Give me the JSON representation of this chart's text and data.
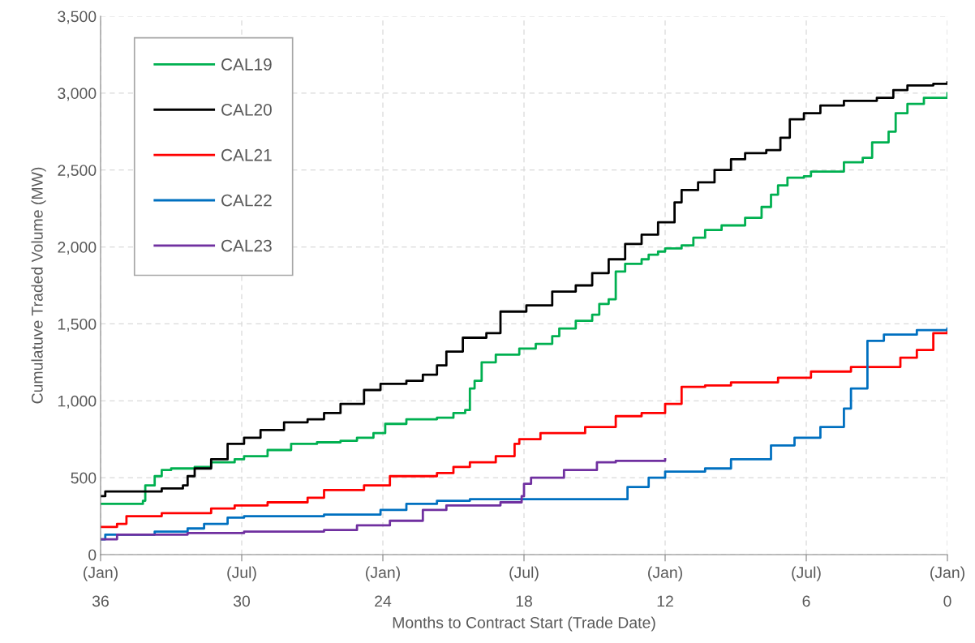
{
  "chart_data": {
    "type": "step",
    "xlabel": "Months to Contract Start (Trade Date)",
    "ylabel": "Cumulatuve Traded Volume (MW)",
    "xlim": [
      36,
      0
    ],
    "xticks": [
      36,
      30,
      24,
      18,
      12,
      6,
      0
    ],
    "annotations": [
      "(Jan)",
      "(Jul)",
      "(Jan)",
      "(Jul)",
      "(Jan)",
      "(Jul)",
      "(Jan)"
    ],
    "ylim": [
      0,
      3500
    ],
    "yticks": [
      {
        "value": 0,
        "label": "0"
      },
      {
        "value": 500,
        "label": "500"
      },
      {
        "value": 1000,
        "label": "1,000"
      },
      {
        "value": 1500,
        "label": "1,500"
      },
      {
        "value": 2000,
        "label": "2,000"
      },
      {
        "value": 2500,
        "label": "2,500"
      },
      {
        "value": 3000,
        "label": "3,000"
      },
      {
        "value": 3500,
        "label": "3,500"
      }
    ],
    "grid": true,
    "legend": "top left",
    "series": [
      {
        "name": "CAL19",
        "color": "#00b050",
        "x": [
          36,
          34.2,
          34.1,
          33.7,
          33.4,
          33.0,
          32.0,
          31.3,
          30.3,
          29.9,
          28.9,
          27.9,
          26.8,
          25.8,
          25.1,
          24.4,
          23.9,
          23.0,
          21.7,
          21.0,
          20.5,
          20.3,
          20.1,
          19.8,
          19.2,
          18.2,
          17.5,
          16.8,
          16.5,
          15.8,
          15.1,
          14.8,
          14.4,
          14.1,
          13.7,
          13.0,
          12.7,
          12.3,
          12.0,
          11.3,
          10.8,
          10.3,
          9.6,
          8.6,
          7.9,
          7.5,
          7.2,
          6.8,
          6.1,
          5.8,
          4.4,
          3.6,
          3.2,
          2.5,
          2.2,
          1.7,
          1.0,
          0
        ],
        "values": [
          330,
          350,
          450,
          510,
          550,
          560,
          570,
          600,
          620,
          640,
          680,
          720,
          730,
          740,
          760,
          790,
          850,
          880,
          890,
          920,
          940,
          1080,
          1130,
          1250,
          1300,
          1340,
          1370,
          1420,
          1470,
          1520,
          1560,
          1630,
          1660,
          1840,
          1890,
          1920,
          1950,
          1970,
          1990,
          2010,
          2060,
          2110,
          2140,
          2190,
          2260,
          2340,
          2400,
          2450,
          2460,
          2490,
          2550,
          2580,
          2680,
          2750,
          2870,
          2930,
          2970,
          3000
        ]
      },
      {
        "name": "CAL20",
        "color": "#000000",
        "x": [
          36,
          35.8,
          33.7,
          33.4,
          32.5,
          32.3,
          32.0,
          31.3,
          30.6,
          29.9,
          29.2,
          28.2,
          27.2,
          26.5,
          25.8,
          24.8,
          24.1,
          23.0,
          22.3,
          21.7,
          21.3,
          20.6,
          19.6,
          19.0,
          17.9,
          16.8,
          15.8,
          15.1,
          14.4,
          13.7,
          13.0,
          12.3,
          11.8,
          11.6,
          11.3,
          10.6,
          9.9,
          9.2,
          8.6,
          7.7,
          7.1,
          6.7,
          6.1,
          5.4,
          4.4,
          3.0,
          2.3,
          1.7,
          0.6,
          0
        ],
        "values": [
          380,
          410,
          410,
          430,
          450,
          510,
          560,
          620,
          720,
          760,
          810,
          860,
          880,
          920,
          980,
          1070,
          1110,
          1130,
          1170,
          1230,
          1320,
          1410,
          1440,
          1580,
          1620,
          1710,
          1750,
          1830,
          1920,
          2020,
          2080,
          2160,
          2160,
          2290,
          2370,
          2420,
          2500,
          2570,
          2610,
          2630,
          2710,
          2830,
          2870,
          2920,
          2950,
          2970,
          3020,
          3050,
          3060,
          3070
        ]
      },
      {
        "name": "CAL21",
        "color": "#ff0000",
        "x": [
          36,
          35.3,
          34.9,
          33.4,
          31.3,
          30.3,
          28.9,
          27.2,
          26.5,
          24.8,
          23.7,
          21.7,
          21.0,
          20.3,
          19.2,
          18.4,
          18.2,
          17.3,
          15.4,
          14.1,
          13.0,
          12.0,
          11.3,
          10.3,
          9.2,
          7.2,
          5.8,
          4.1,
          2.3,
          2.0,
          1.3,
          0.6,
          0
        ],
        "values": [
          180,
          200,
          250,
          270,
          300,
          320,
          340,
          370,
          420,
          450,
          510,
          530,
          570,
          600,
          640,
          720,
          750,
          790,
          830,
          900,
          920,
          980,
          1090,
          1100,
          1120,
          1150,
          1190,
          1220,
          1220,
          1280,
          1330,
          1440,
          1460
        ]
      },
      {
        "name": "CAL22",
        "color": "#0070c0",
        "x": [
          36,
          35.8,
          33.7,
          32.3,
          31.6,
          30.6,
          29.9,
          26.5,
          24.1,
          23.0,
          21.7,
          20.3,
          14.1,
          13.6,
          12.7,
          12.0,
          10.3,
          9.2,
          7.5,
          6.5,
          5.4,
          4.4,
          4.1,
          3.4,
          2.7,
          1.7,
          1.3,
          0
        ],
        "values": [
          100,
          130,
          150,
          170,
          200,
          240,
          250,
          260,
          290,
          330,
          350,
          360,
          360,
          440,
          500,
          540,
          560,
          620,
          710,
          760,
          830,
          950,
          1080,
          1390,
          1430,
          1430,
          1460,
          1470
        ]
      },
      {
        "name": "CAL23",
        "color": "#7030a0",
        "x": [
          36,
          35.3,
          32.3,
          29.9,
          26.5,
          25.1,
          23.7,
          22.3,
          21.3,
          19.0,
          18.1,
          18.0,
          17.7,
          16.3,
          14.9,
          14.1,
          12.0
        ],
        "values": [
          100,
          130,
          140,
          150,
          160,
          190,
          220,
          290,
          320,
          340,
          380,
          460,
          500,
          550,
          600,
          610,
          620
        ]
      }
    ]
  }
}
